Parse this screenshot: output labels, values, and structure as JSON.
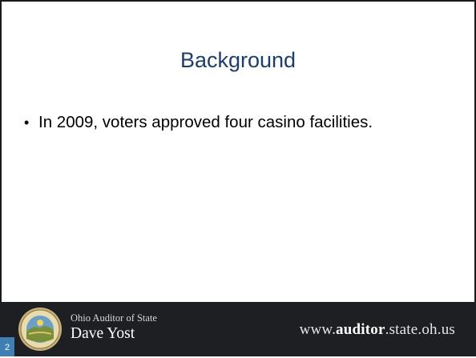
{
  "slide": {
    "title": "Background",
    "bullets": [
      "In 2009, voters approved four casino facilities."
    ],
    "bullet_symbol": "•",
    "page_number": "2"
  },
  "footer": {
    "organization": "Ohio Auditor of State",
    "name": "Dave Yost",
    "url_prefix": "www.",
    "url_highlight": "auditor",
    "url_suffix": ".state.oh.us"
  },
  "colors": {
    "title": "#1c3e6e",
    "footer_bg": "#1d1f22",
    "page_badge": "#3f7fb3"
  }
}
